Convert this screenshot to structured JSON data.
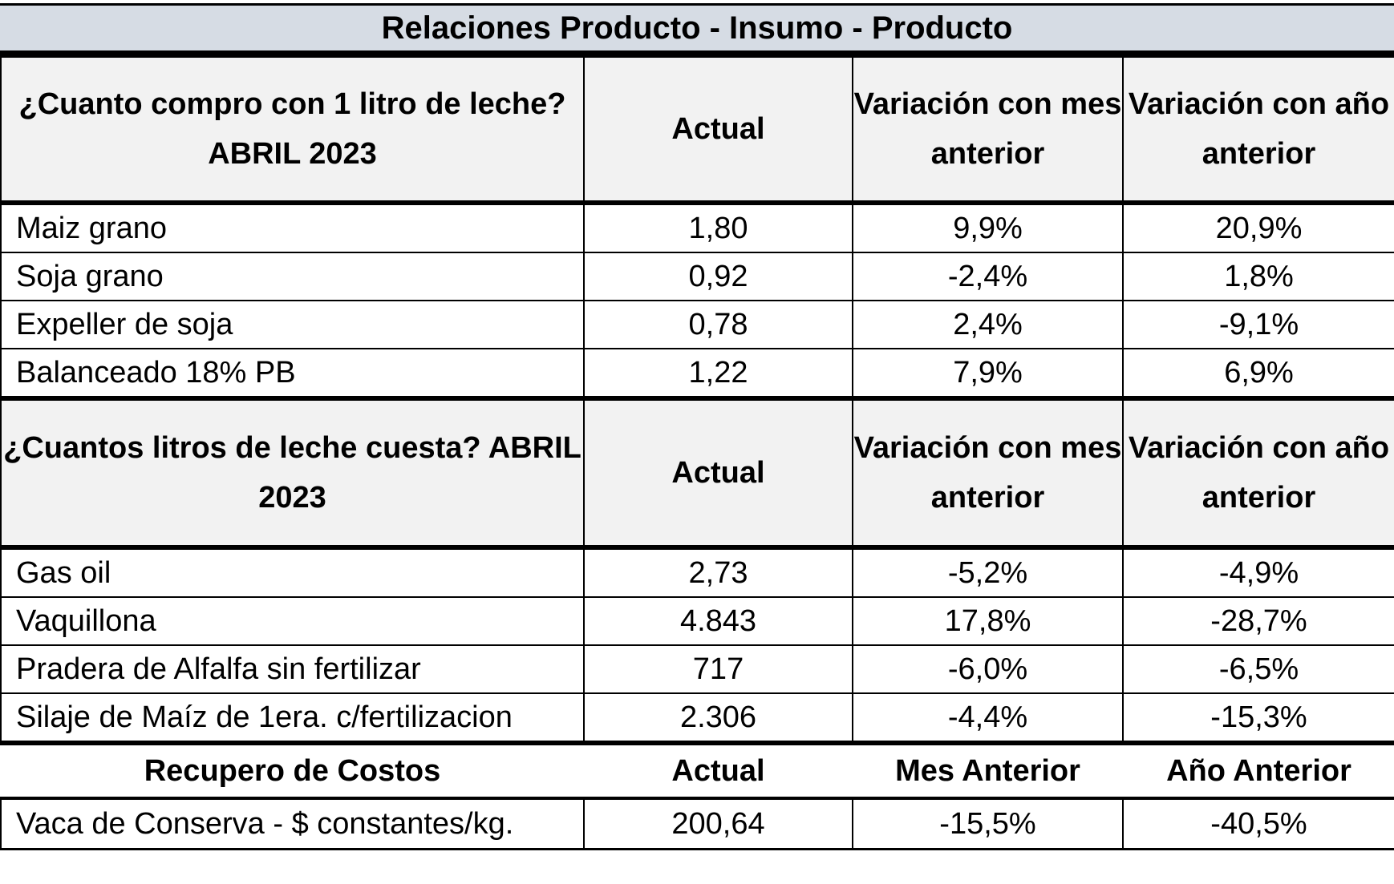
{
  "title": "Relaciones Producto - Insumo - Producto",
  "section1": {
    "header": {
      "col1": "¿Cuanto compro con 1 litro de leche? ABRIL 2023",
      "col2": "Actual",
      "col3": "Variación con mes anterior",
      "col4": "Variación con año anterior"
    },
    "rows": [
      {
        "label": "Maiz grano",
        "actual": "1,80",
        "mes": "9,9%",
        "anio": "20,9%"
      },
      {
        "label": "Soja grano",
        "actual": "0,92",
        "mes": "-2,4%",
        "anio": "1,8%"
      },
      {
        "label": "Expeller de soja",
        "actual": "0,78",
        "mes": "2,4%",
        "anio": "-9,1%"
      },
      {
        "label": "Balanceado 18% PB",
        "actual": "1,22",
        "mes": "7,9%",
        "anio": "6,9%"
      }
    ]
  },
  "section2": {
    "header": {
      "col1": "¿Cuantos litros de leche cuesta? ABRIL 2023",
      "col2": "Actual",
      "col3": "Variación con mes anterior",
      "col4": "Variación con año anterior"
    },
    "rows": [
      {
        "label": "Gas oil",
        "actual": "2,73",
        "mes": "-5,2%",
        "anio": "-4,9%"
      },
      {
        "label": "Vaquillona",
        "actual": "4.843",
        "mes": "17,8%",
        "anio": "-28,7%"
      },
      {
        "label": "Pradera de Alfalfa sin fertilizar",
        "actual": "717",
        "mes": "-6,0%",
        "anio": "-6,5%"
      },
      {
        "label": "Silaje de Maíz de 1era. c/fertilizacion",
        "actual": "2.306",
        "mes": "-4,4%",
        "anio": "-15,3%"
      }
    ]
  },
  "section3": {
    "header": {
      "col1": "Recupero de Costos",
      "col2": "Actual",
      "col3": "Mes Anterior",
      "col4": "Año Anterior"
    },
    "rows": [
      {
        "label": "Vaca de Conserva - $ constantes/kg.",
        "actual": "200,64",
        "mes": "-15,5%",
        "anio": "-40,5%"
      }
    ]
  }
}
